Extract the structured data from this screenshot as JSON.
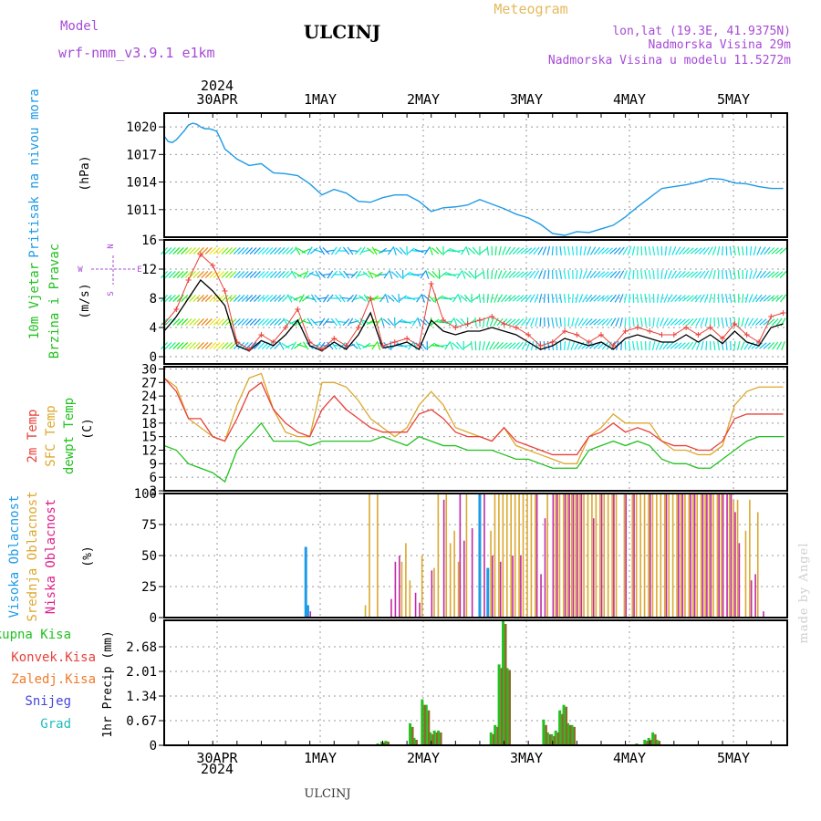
{
  "header": {
    "title": "ULCINJ",
    "meteogram": "Meteogram",
    "model_label": "Model",
    "model_name": "wrf-nmm_v3.9.1 e1km",
    "lonlat": "lon,lat (19.3E, 41.9375N)",
    "elevation": "Nadmorska Visina 29m",
    "model_elevation": "Nadmorska Visina u modelu 11.5272m",
    "footer": "ULCINJ",
    "watermark": "made by Angel"
  },
  "colors": {
    "pressure": "#1e9be6",
    "wind_speed": "#000000",
    "gust": "#e8413a",
    "t2m": "#e8413a",
    "sfc": "#dca82e",
    "dew": "#22c11f",
    "high_cloud": "#1e9be6",
    "mid_cloud": "#dca82e",
    "low_cloud": "#c02aa8",
    "total_precip": "#22c11f",
    "conv_precip": "#e8413a",
    "frz": "#f07a2a",
    "snow": "#4444dd",
    "hail": "#22bbbb"
  },
  "axis": {
    "year": "2024",
    "day_labels": [
      "30APR",
      "1MAY",
      "2MAY",
      "3MAY",
      "4MAY",
      "5MAY"
    ]
  },
  "chart_data": [
    {
      "type": "line",
      "name": "pressure",
      "ylabel_main": "Pritisak na nivou mora",
      "ylabel_unit": "(hPa)",
      "yticks": [
        1011,
        1014,
        1017,
        1020
      ],
      "ylim": [
        1008,
        1021.5
      ],
      "x_hours": [
        0,
        1,
        2,
        3,
        4,
        5,
        6,
        7,
        8,
        9,
        10,
        11,
        12,
        13,
        14,
        15,
        18,
        21,
        24,
        27,
        30,
        33,
        36,
        39,
        42,
        45,
        48,
        51,
        54,
        57,
        60,
        63,
        66,
        69,
        72,
        75,
        78,
        81,
        84,
        87,
        90,
        93,
        96,
        99,
        102,
        105,
        108,
        111,
        114,
        117,
        120,
        123,
        126,
        129,
        132,
        135,
        138,
        141,
        144,
        147,
        150,
        153
      ],
      "values": [
        1019.0,
        1018.4,
        1018.3,
        1018.6,
        1019.1,
        1019.6,
        1020.2,
        1020.4,
        1020.3,
        1020.0,
        1019.8,
        1019.8,
        1019.7,
        1019.5,
        1018.6,
        1017.6,
        1016.5,
        1015.8,
        1016.0,
        1015.0,
        1014.9,
        1014.7,
        1013.8,
        1012.6,
        1013.2,
        1012.8,
        1011.9,
        1011.8,
        1012.3,
        1012.6,
        1012.6,
        1011.9,
        1010.8,
        1011.2,
        1011.3,
        1011.5,
        1012.1,
        1011.6,
        1011.1,
        1010.5,
        1010.1,
        1009.4,
        1008.4,
        1008.2,
        1008.6,
        1008.5,
        1008.9,
        1009.3,
        1010.2,
        1011.3,
        1012.3,
        1013.3,
        1013.5,
        1013.7,
        1014.0,
        1014.4,
        1014.3,
        1013.9,
        1013.8,
        1013.5,
        1013.3,
        1013.3
      ]
    },
    {
      "type": "line",
      "name": "wind",
      "ylabel_main": "10m Vjetar",
      "ylabel_sub": "Brzina i Pravac",
      "ylabel_unit": "(m/s)",
      "compass": {
        "n": "N",
        "w": "W",
        "e": "E",
        "s": "S"
      },
      "yticks": [
        0,
        4,
        8,
        12,
        16
      ],
      "ylim": [
        -1,
        16
      ],
      "x_hours": [
        0,
        3,
        6,
        9,
        12,
        15,
        18,
        21,
        24,
        27,
        30,
        33,
        36,
        39,
        42,
        45,
        48,
        51,
        54,
        57,
        60,
        63,
        66,
        69,
        72,
        75,
        78,
        81,
        84,
        87,
        90,
        93,
        96,
        99,
        102,
        105,
        108,
        111,
        114,
        117,
        120,
        123,
        126,
        129,
        132,
        135,
        138,
        141,
        144,
        147,
        150,
        153
      ],
      "speed": [
        3.5,
        5.5,
        8.0,
        10.5,
        9.0,
        7.0,
        1.5,
        0.8,
        2.2,
        1.5,
        3.0,
        5.0,
        1.5,
        0.8,
        2.0,
        1.0,
        3.0,
        6.0,
        1.2,
        1.5,
        2.0,
        1.0,
        5.0,
        3.5,
        3.0,
        3.5,
        3.5,
        4.0,
        3.5,
        3.0,
        2.0,
        1.0,
        1.5,
        2.5,
        2.0,
        1.5,
        2.0,
        1.0,
        2.5,
        3.0,
        2.5,
        2.0,
        2.0,
        3.0,
        2.0,
        3.0,
        1.8,
        3.5,
        2.0,
        1.5,
        4.0,
        4.5
      ],
      "gust": [
        4.5,
        6.5,
        10.5,
        14.0,
        12.5,
        9.0,
        2.0,
        1.0,
        3.0,
        2.0,
        4.0,
        6.5,
        2.0,
        1.0,
        2.5,
        1.5,
        4.0,
        8.0,
        1.5,
        2.0,
        2.5,
        1.5,
        10.0,
        5.0,
        4.0,
        4.5,
        5.0,
        5.5,
        4.5,
        4.0,
        3.0,
        1.5,
        2.0,
        3.5,
        3.0,
        2.0,
        3.0,
        1.5,
        3.5,
        4.0,
        3.5,
        3.0,
        3.0,
        4.0,
        3.0,
        4.0,
        2.5,
        4.5,
        3.0,
        2.0,
        5.5,
        6.0
      ]
    },
    {
      "type": "line",
      "name": "temperature",
      "ylabel_lines": [
        "2m Temp",
        "SFC Temp",
        "dewpt Temp"
      ],
      "ylabel_unit": "(C)",
      "yticks": [
        3,
        6,
        9,
        12,
        15,
        18,
        21,
        24,
        27,
        30
      ],
      "ylim": [
        3,
        30.5
      ],
      "x_hours": [
        0,
        3,
        6,
        9,
        12,
        15,
        18,
        21,
        24,
        27,
        30,
        33,
        36,
        39,
        42,
        45,
        48,
        51,
        54,
        57,
        60,
        63,
        66,
        69,
        72,
        75,
        78,
        81,
        84,
        87,
        90,
        93,
        96,
        99,
        102,
        105,
        108,
        111,
        114,
        117,
        120,
        123,
        126,
        129,
        132,
        135,
        138,
        141,
        144,
        147,
        150,
        153
      ],
      "t2m": [
        28,
        25,
        19,
        19,
        15,
        14,
        19,
        25,
        27,
        21,
        18,
        16,
        15,
        21,
        24,
        21,
        19,
        17,
        16,
        16,
        16,
        20,
        21,
        19,
        16,
        15,
        15,
        14,
        17,
        14,
        13,
        12,
        11,
        11,
        11,
        15,
        16,
        18,
        16,
        17,
        16,
        14,
        13,
        13,
        12,
        12,
        14,
        19,
        20,
        20,
        20,
        20
      ],
      "sfc": [
        28,
        26,
        19,
        17,
        15,
        14,
        22,
        28,
        29,
        21,
        16,
        15,
        15,
        27,
        27,
        26,
        23,
        19,
        17,
        15,
        17,
        22,
        25,
        22,
        17,
        16,
        15,
        14,
        17,
        13,
        12,
        11,
        10,
        9,
        9,
        15,
        17,
        20,
        18,
        18,
        18,
        14,
        12,
        12,
        11,
        11,
        13,
        22,
        25,
        26,
        26,
        26
      ],
      "dew": [
        13,
        12,
        9,
        8,
        7,
        5,
        12,
        15,
        18,
        14,
        14,
        14,
        13,
        14,
        14,
        14,
        14,
        14,
        15,
        14,
        13,
        15,
        14,
        13,
        13,
        12,
        12,
        12,
        11,
        10,
        10,
        9,
        8,
        8,
        8,
        12,
        13,
        14,
        13,
        14,
        13,
        10,
        9,
        9,
        8,
        8,
        10,
        12,
        14,
        15,
        15,
        15
      ]
    },
    {
      "type": "bar",
      "name": "clouds",
      "ylabel_lines": [
        "Visoka Oblacnost",
        "Srednja Oblacnost",
        "Niska Oblacnost"
      ],
      "ylabel_unit": "(%)",
      "yticks": [
        0,
        25,
        50,
        75,
        100
      ],
      "ylim": [
        0,
        100
      ],
      "high": [
        [
          35,
          57
        ],
        [
          35.5,
          10
        ],
        [
          78,
          100
        ],
        [
          80,
          40
        ]
      ],
      "mid": [
        [
          50,
          10
        ],
        [
          51,
          100
        ],
        [
          53,
          100
        ],
        [
          59,
          45
        ],
        [
          60,
          60
        ],
        [
          61,
          30
        ],
        [
          64,
          50
        ],
        [
          67,
          40
        ],
        [
          68,
          100
        ],
        [
          70,
          100
        ],
        [
          71,
          60
        ],
        [
          72,
          70
        ],
        [
          73,
          45
        ],
        [
          75,
          100
        ],
        [
          81,
          70
        ],
        [
          82,
          100
        ],
        [
          83,
          100
        ],
        [
          84,
          100
        ],
        [
          85,
          100
        ],
        [
          86,
          100
        ],
        [
          87,
          100
        ],
        [
          88,
          100
        ],
        [
          89,
          100
        ],
        [
          90,
          100
        ],
        [
          91,
          100
        ],
        [
          92,
          100
        ],
        [
          95,
          100
        ],
        [
          97,
          100
        ],
        [
          98,
          100
        ],
        [
          99,
          100
        ],
        [
          100,
          100
        ],
        [
          101,
          100
        ],
        [
          102,
          100
        ],
        [
          103,
          100
        ],
        [
          104,
          100
        ],
        [
          105,
          100
        ],
        [
          106,
          100
        ],
        [
          107,
          100
        ],
        [
          108,
          100
        ],
        [
          109,
          100
        ],
        [
          110,
          100
        ],
        [
          111,
          100
        ],
        [
          112,
          100
        ],
        [
          114,
          100
        ],
        [
          116,
          100
        ],
        [
          117,
          100
        ],
        [
          118,
          100
        ],
        [
          119,
          100
        ],
        [
          120,
          100
        ],
        [
          121,
          100
        ],
        [
          122,
          100
        ],
        [
          123,
          100
        ],
        [
          124,
          100
        ],
        [
          125,
          100
        ],
        [
          126,
          100
        ],
        [
          127,
          100
        ],
        [
          128,
          100
        ],
        [
          129,
          100
        ],
        [
          130,
          100
        ],
        [
          131,
          100
        ],
        [
          132,
          100
        ],
        [
          133,
          100
        ],
        [
          134,
          100
        ],
        [
          135,
          100
        ],
        [
          136,
          100
        ],
        [
          137,
          100
        ],
        [
          138,
          100
        ],
        [
          140,
          100
        ],
        [
          141,
          95
        ],
        [
          142,
          95
        ],
        [
          144,
          70
        ],
        [
          145,
          95
        ],
        [
          147,
          85
        ]
      ],
      "low": [
        [
          36,
          5
        ],
        [
          56,
          15
        ],
        [
          57,
          45
        ],
        [
          58,
          50
        ],
        [
          62,
          20
        ],
        [
          63,
          12
        ],
        [
          66,
          38
        ],
        [
          69,
          95
        ],
        [
          73,
          100
        ],
        [
          74,
          62
        ],
        [
          76,
          72
        ],
        [
          79,
          100
        ],
        [
          81,
          50
        ],
        [
          83,
          45
        ],
        [
          86,
          50
        ],
        [
          88,
          50
        ],
        [
          92,
          100
        ],
        [
          93,
          35
        ],
        [
          94,
          80
        ],
        [
          96,
          100
        ],
        [
          97,
          100
        ],
        [
          99,
          100
        ],
        [
          100,
          100
        ],
        [
          101,
          100
        ],
        [
          102,
          100
        ],
        [
          103,
          100
        ],
        [
          106,
          80
        ],
        [
          108,
          100
        ],
        [
          111,
          100
        ],
        [
          114,
          100
        ],
        [
          116,
          100
        ],
        [
          120,
          100
        ],
        [
          124,
          100
        ],
        [
          127,
          100
        ],
        [
          128,
          100
        ],
        [
          130,
          100
        ],
        [
          131,
          100
        ],
        [
          133,
          100
        ],
        [
          134,
          100
        ],
        [
          135,
          100
        ],
        [
          137,
          100
        ],
        [
          138,
          100
        ],
        [
          139,
          100
        ],
        [
          140,
          100
        ],
        [
          141,
          85
        ],
        [
          142,
          60
        ],
        [
          145,
          30
        ],
        [
          146,
          35
        ],
        [
          148,
          5
        ]
      ]
    },
    {
      "type": "bar",
      "name": "precipitation",
      "legend": [
        "Ukupna Kisa",
        "Konvek.Kisa",
        "Zaledj.Kisa",
        "Snijeg",
        "Grad"
      ],
      "ylabel_unit": "1hr Precip (mm)",
      "yticks": [
        0,
        0.67,
        1.34,
        2.01,
        2.68
      ],
      "ylim": [
        0,
        3.4
      ],
      "total": [
        [
          53,
          0.05
        ],
        [
          54,
          0.1
        ],
        [
          55,
          0.12
        ],
        [
          61,
          0.6
        ],
        [
          62,
          0.2
        ],
        [
          64,
          1.25
        ],
        [
          65,
          1.1
        ],
        [
          66,
          0.35
        ],
        [
          67,
          0.4
        ],
        [
          68,
          0.4
        ],
        [
          81,
          0.35
        ],
        [
          82,
          0.55
        ],
        [
          83,
          2.2
        ],
        [
          84,
          3.4
        ],
        [
          85,
          2.1
        ],
        [
          94,
          0.7
        ],
        [
          95,
          0.35
        ],
        [
          96,
          0.3
        ],
        [
          97,
          0.4
        ],
        [
          98,
          0.95
        ],
        [
          99,
          1.1
        ],
        [
          100,
          0.6
        ],
        [
          101,
          0.55
        ],
        [
          117,
          0.05
        ],
        [
          119,
          0.15
        ],
        [
          120,
          0.2
        ],
        [
          121,
          0.35
        ],
        [
          122,
          0.15
        ]
      ],
      "conv": [
        [
          54,
          0.08
        ],
        [
          55,
          0.1
        ],
        [
          61,
          0.5
        ],
        [
          62,
          0.15
        ],
        [
          64,
          1.1
        ],
        [
          65,
          0.95
        ],
        [
          66,
          0.3
        ],
        [
          67,
          0.35
        ],
        [
          68,
          0.35
        ],
        [
          81,
          0.3
        ],
        [
          82,
          0.5
        ],
        [
          83,
          2.1
        ],
        [
          84,
          3.3
        ],
        [
          85,
          2.05
        ],
        [
          94,
          0.55
        ],
        [
          95,
          0.3
        ],
        [
          96,
          0.25
        ],
        [
          97,
          0.35
        ],
        [
          98,
          0.85
        ],
        [
          99,
          1.05
        ],
        [
          100,
          0.55
        ],
        [
          101,
          0.5
        ],
        [
          119,
          0.12
        ],
        [
          120,
          0.15
        ],
        [
          121,
          0.3
        ],
        [
          122,
          0.12
        ]
      ]
    }
  ]
}
